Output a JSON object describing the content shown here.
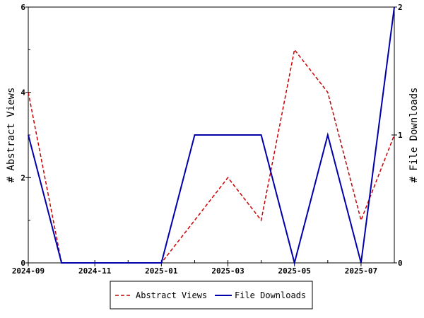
{
  "chart_data": {
    "type": "line",
    "x": [
      "2024-09",
      "2024-10",
      "2024-11",
      "2024-12",
      "2025-01",
      "2025-02",
      "2025-03",
      "2025-04",
      "2025-05",
      "2025-06",
      "2025-07",
      "2025-08"
    ],
    "x_tick_labels": [
      "2024-09",
      "2024-11",
      "2025-01",
      "2025-03",
      "2025-05",
      "2025-07"
    ],
    "ylabel_left": "# Abstract Views",
    "ylabel_right": "# File Downloads",
    "ylim_left": [
      0,
      6
    ],
    "ylim_right": [
      0,
      2
    ],
    "yticks_left": [
      "0",
      "2",
      "4",
      "6"
    ],
    "yticks_right": [
      "0",
      "1",
      "2"
    ],
    "legend_position": "bottom-center",
    "grid": false,
    "series": [
      {
        "name": "Abstract Views",
        "axis": "left",
        "color": "#cc0000",
        "dash": "dashed",
        "values": [
          4,
          0,
          0,
          0,
          0,
          1,
          2,
          1,
          5,
          4,
          1,
          3
        ]
      },
      {
        "name": "File Downloads",
        "axis": "right",
        "color": "#0000aa",
        "dash": "solid",
        "values": [
          1,
          0,
          0,
          0,
          0,
          1,
          1,
          1,
          0,
          1,
          0,
          2
        ]
      }
    ]
  }
}
